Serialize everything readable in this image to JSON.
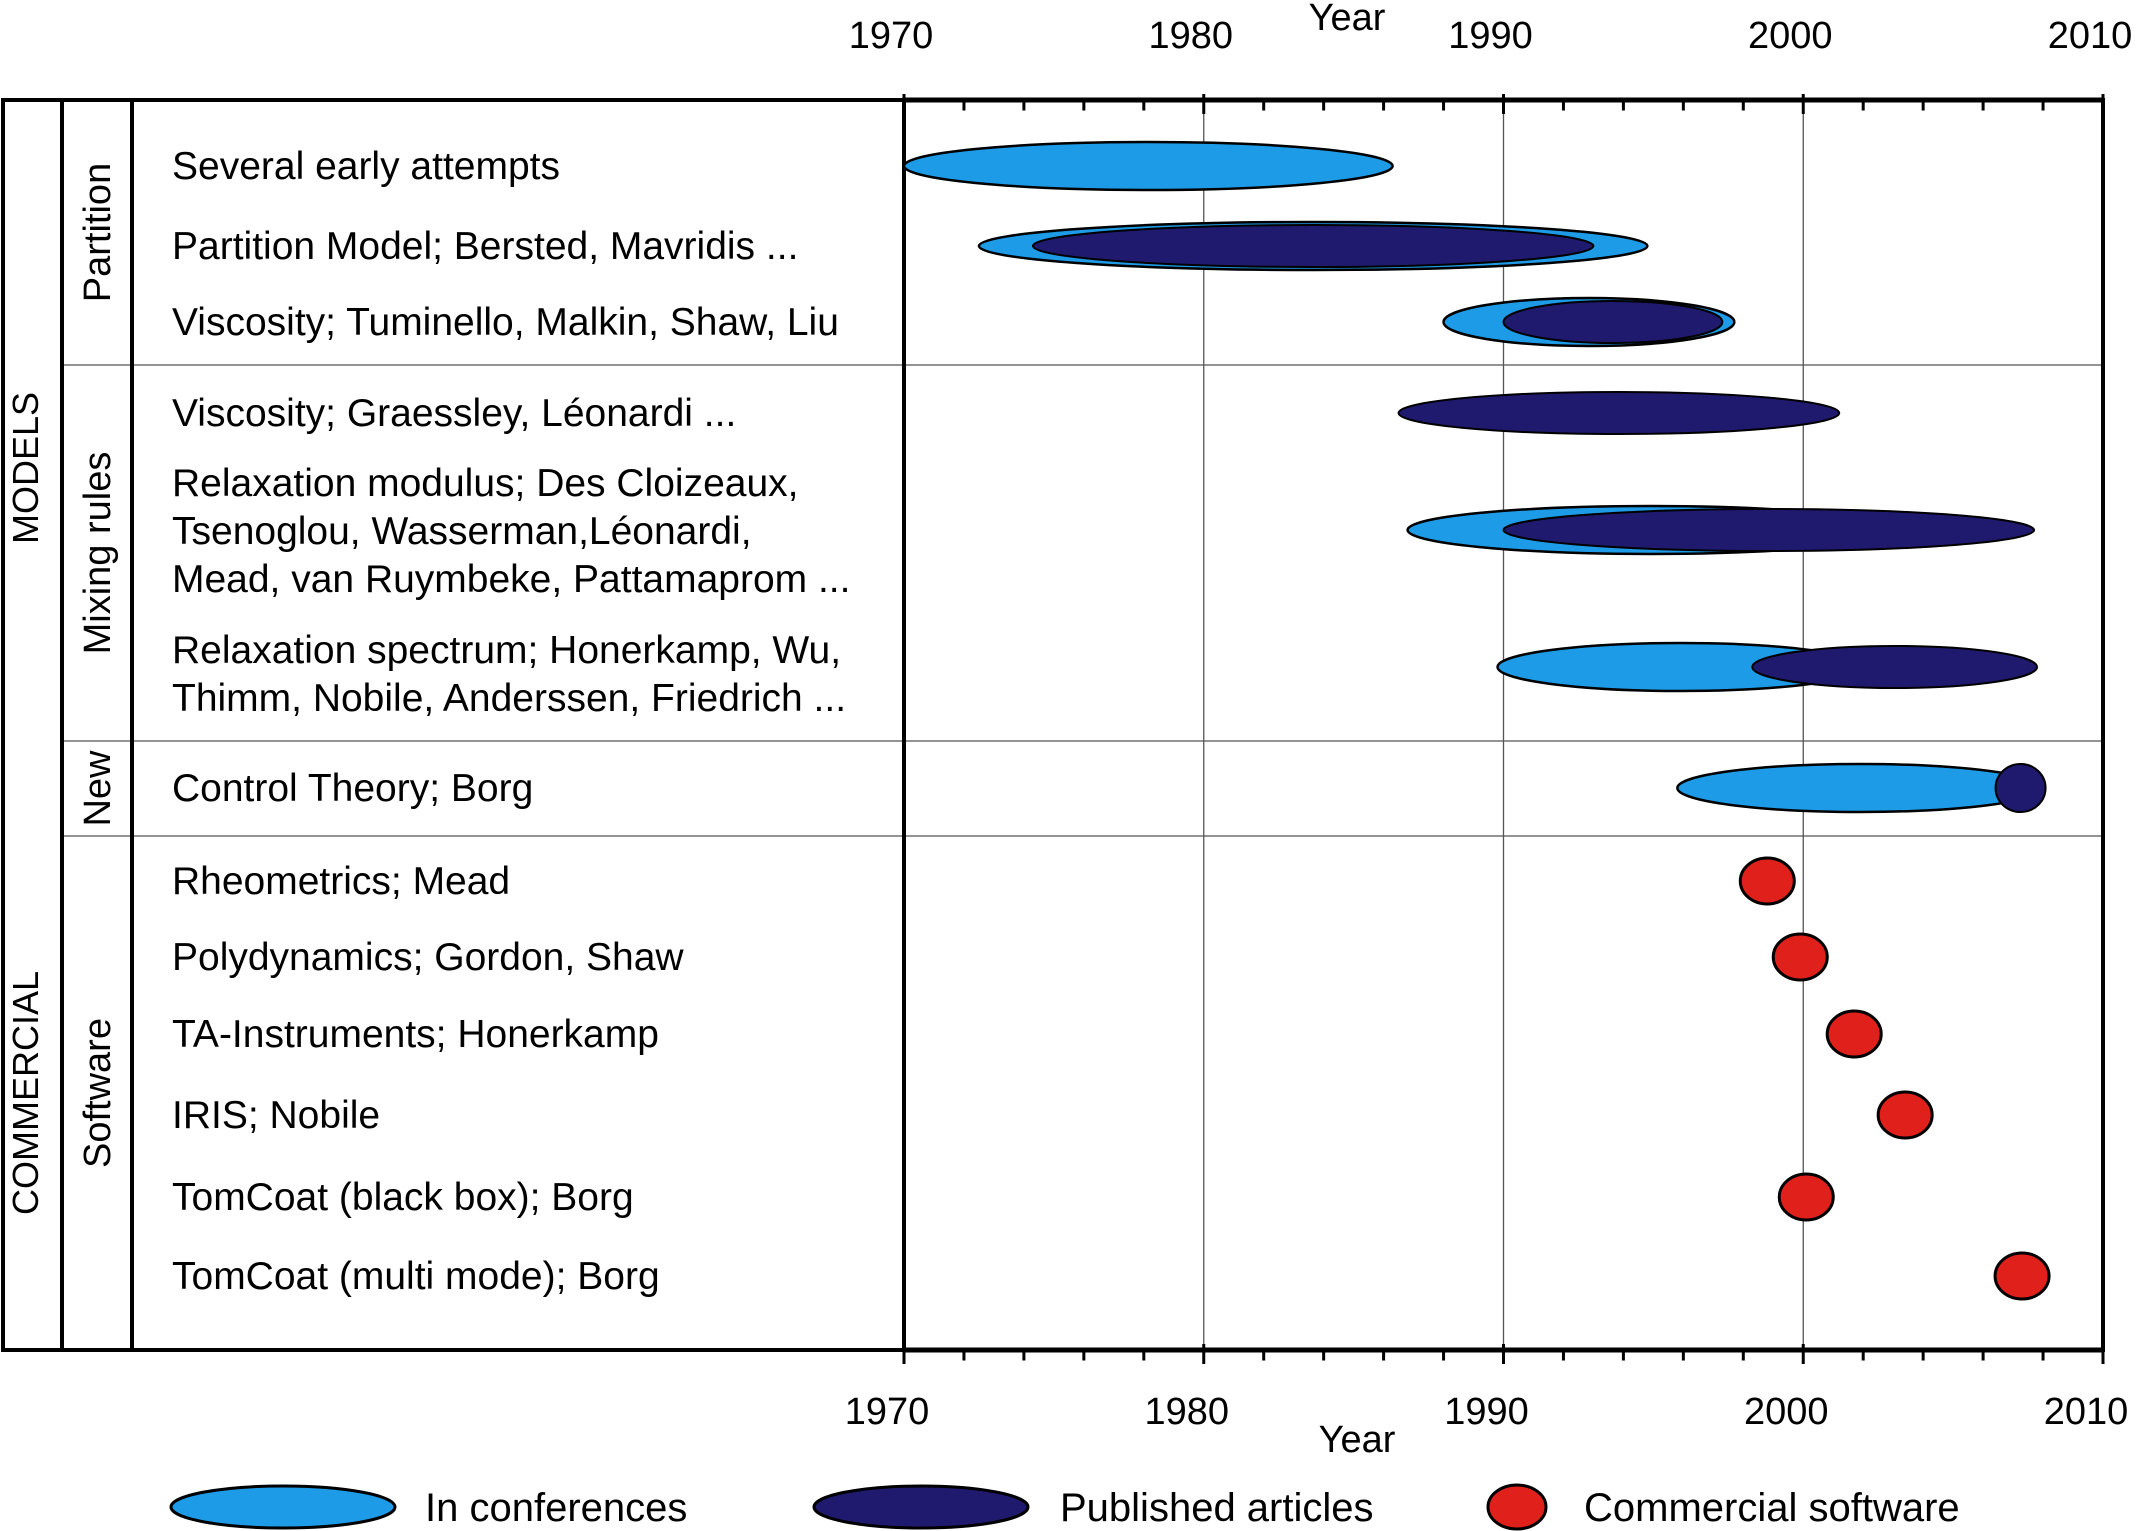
{
  "chart_data": {
    "type": "timeline",
    "xlabel_top": "Year",
    "xlabel_bottom": "Year",
    "xlim": [
      1970,
      2010
    ],
    "xticks": [
      "1970",
      "1980",
      "1990",
      "2000",
      "2010"
    ],
    "grid": "vertical lines at 1980, 1990, 2000; row separators",
    "legend_position": "bottom",
    "legend": [
      {
        "key": "conference",
        "label": "In conferences",
        "color": "#1e9be6"
      },
      {
        "key": "article",
        "label": "Published articles",
        "color": "#1f1a6e"
      },
      {
        "key": "software",
        "label": "Commercial software",
        "color": "#e0201b"
      }
    ],
    "side_groups": [
      {
        "label": "MODELS",
        "rows": [
          0,
          6
        ]
      },
      {
        "label": "COMMERCIAL",
        "rows": [
          7,
          12
        ]
      }
    ],
    "categories": [
      {
        "label": "Partition",
        "rows": [
          0,
          2
        ]
      },
      {
        "label": "Mixing rules",
        "rows": [
          3,
          5
        ]
      },
      {
        "label": "New",
        "rows": [
          6,
          6
        ]
      },
      {
        "label": "Software",
        "rows": [
          7,
          12
        ]
      }
    ],
    "rows": [
      {
        "lines": [
          "Several early attempts"
        ],
        "conference": [
          1970,
          1986.3
        ]
      },
      {
        "lines": [
          "Partition Model; Bersted, Mavridis ..."
        ],
        "conference": [
          1972.5,
          1994.8
        ],
        "article": [
          1974.3,
          1993
        ]
      },
      {
        "lines": [
          "Viscosity; Tuminello, Malkin, Shaw, Liu"
        ],
        "conference": [
          1988,
          1997.7
        ],
        "article": [
          1990,
          1997.3
        ]
      },
      {
        "lines": [
          "Viscosity; Graessley, Léonardi ..."
        ],
        "article": [
          1986.5,
          2001.2
        ]
      },
      {
        "lines": [
          "Relaxation modulus; Des Cloizeaux,",
          "Tsenoglou, Wasserman,Léonardi,",
          "Mead, van Ruymbeke, Pattamaprom ..."
        ],
        "conference": [
          1986.8,
          2003
        ],
        "article": [
          1990,
          2007.7
        ]
      },
      {
        "lines": [
          "Relaxation spectrum; Honerkamp, Wu,",
          "Thimm, Nobile, Anderssen, Friedrich ..."
        ],
        "conference": [
          1989.8,
          2002
        ],
        "article": [
          1998.3,
          2007.8
        ]
      },
      {
        "lines": [
          "Control Theory; Borg"
        ],
        "conference": [
          1995.8,
          2008
        ],
        "article": [
          2006.5,
          2008
        ]
      },
      {
        "lines": [
          "Rheometrics; Mead"
        ],
        "software": 1998.8
      },
      {
        "lines": [
          "Polydynamics; Gordon, Shaw"
        ],
        "software": 1999.9
      },
      {
        "lines": [
          "TA-Instruments; Honerkamp"
        ],
        "software": 2001.7
      },
      {
        "lines": [
          "IRIS; Nobile"
        ],
        "software": 2003.4
      },
      {
        "lines": [
          "TomCoat (black box); Borg"
        ],
        "software": 2000.1
      },
      {
        "lines": [
          "TomCoat (multi mode); Borg"
        ],
        "software": 2007.3
      }
    ]
  }
}
